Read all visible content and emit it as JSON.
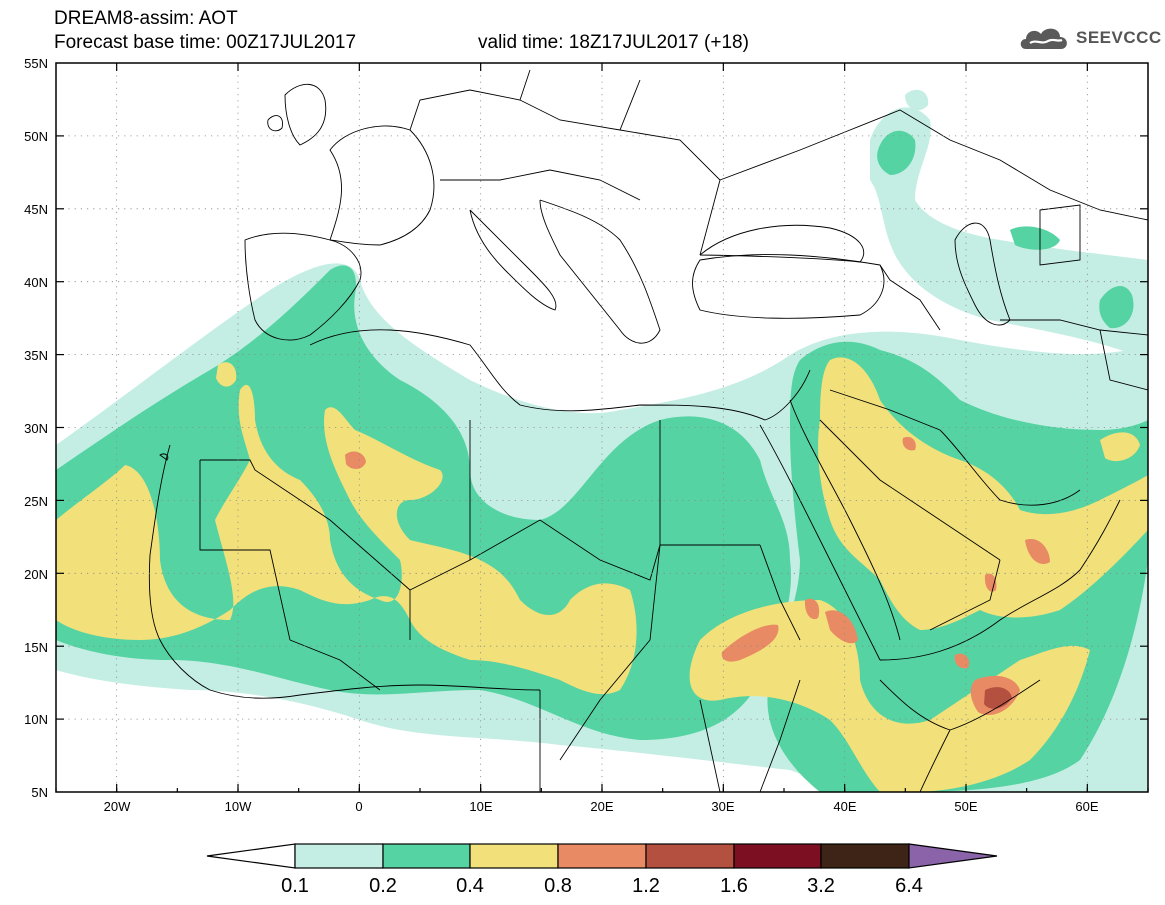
{
  "header": {
    "title": "DREAM8-assim: AOT",
    "base_time": "Forecast base time: 00Z17JUL2017",
    "valid_time": "valid time: 18Z17JUL2017 (+18)"
  },
  "logo": {
    "text": "SEEVCCC",
    "icon": "cloud-icon"
  },
  "map": {
    "lat_labels": [
      "55N",
      "50N",
      "45N",
      "40N",
      "35N",
      "30N",
      "25N",
      "20N",
      "15N",
      "10N",
      "5N"
    ],
    "lon_labels": [
      "20W",
      "10W",
      "0",
      "10E",
      "20E",
      "30E",
      "40E",
      "50E",
      "60E"
    ],
    "extent": {
      "lon_min": -25,
      "lon_max": 65,
      "lat_min": 5,
      "lat_max": 55
    }
  },
  "colorbar": {
    "thresholds": [
      "0.1",
      "0.2",
      "0.4",
      "0.8",
      "1.2",
      "1.6",
      "3.2",
      "6.4"
    ],
    "colors": [
      "#ffffff",
      "#c4eee4",
      "#55d3a3",
      "#f2e07a",
      "#e88a64",
      "#b3503f",
      "#7d0f22",
      "#3d2416",
      "#8a63a8"
    ]
  },
  "colors": {
    "c1": "#c4eee4",
    "c2": "#55d3a3",
    "c3": "#f2e07a",
    "c4": "#e88a64",
    "c5": "#b3503f",
    "c6": "#7d0f22"
  }
}
